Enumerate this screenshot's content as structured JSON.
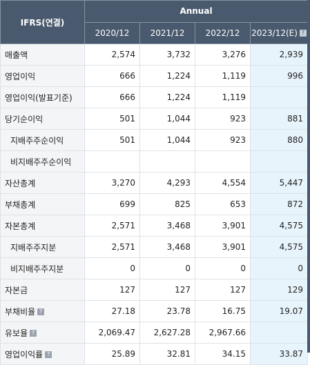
{
  "header": {
    "corner_label": "IFRS(연결)",
    "group_label": "Annual",
    "periods": [
      "2020/12",
      "2021/12",
      "2022/12",
      "2023/12(E)"
    ]
  },
  "rows": [
    {
      "label": "매출액",
      "values": [
        "2,574",
        "3,732",
        "3,276",
        "2,939"
      ]
    },
    {
      "label": "영업이익",
      "values": [
        "666",
        "1,224",
        "1,119",
        "996"
      ]
    },
    {
      "label": "영업이익(발표기준)",
      "values": [
        "666",
        "1,224",
        "1,119",
        ""
      ]
    },
    {
      "label": "당기순이익",
      "values": [
        "501",
        "1,044",
        "923",
        "881"
      ]
    },
    {
      "label": "지배주주순이익",
      "values": [
        "501",
        "1,044",
        "923",
        "880"
      ]
    },
    {
      "label": "비지배주주순이익",
      "values": [
        "",
        "",
        "",
        ""
      ]
    },
    {
      "label": "자산총계",
      "values": [
        "3,270",
        "4,293",
        "4,554",
        "5,447"
      ]
    },
    {
      "label": "부채총계",
      "values": [
        "699",
        "825",
        "653",
        "872"
      ]
    },
    {
      "label": "자본총계",
      "values": [
        "2,571",
        "3,468",
        "3,901",
        "4,575"
      ]
    },
    {
      "label": "지배주주지분",
      "values": [
        "2,571",
        "3,468",
        "3,901",
        "4,575"
      ]
    },
    {
      "label": "비지배주주지분",
      "values": [
        "0",
        "0",
        "0",
        "0"
      ]
    },
    {
      "label": "자본금",
      "values": [
        "127",
        "127",
        "127",
        "129"
      ]
    },
    {
      "label": "부채비율",
      "values": [
        "27.18",
        "23.78",
        "16.75",
        "19.07"
      ]
    },
    {
      "label": "유보율",
      "values": [
        "2,069.47",
        "2,627.28",
        "2,967.66",
        ""
      ]
    },
    {
      "label": "영업이익률",
      "values": [
        "25.89",
        "32.81",
        "34.15",
        "33.87"
      ]
    }
  ],
  "help_icon_glyph": "?",
  "colors": {
    "header_bg": "#4a5a6e",
    "estimate_bg": "#e8f4fb",
    "label_bg": "#f4f5f7"
  }
}
